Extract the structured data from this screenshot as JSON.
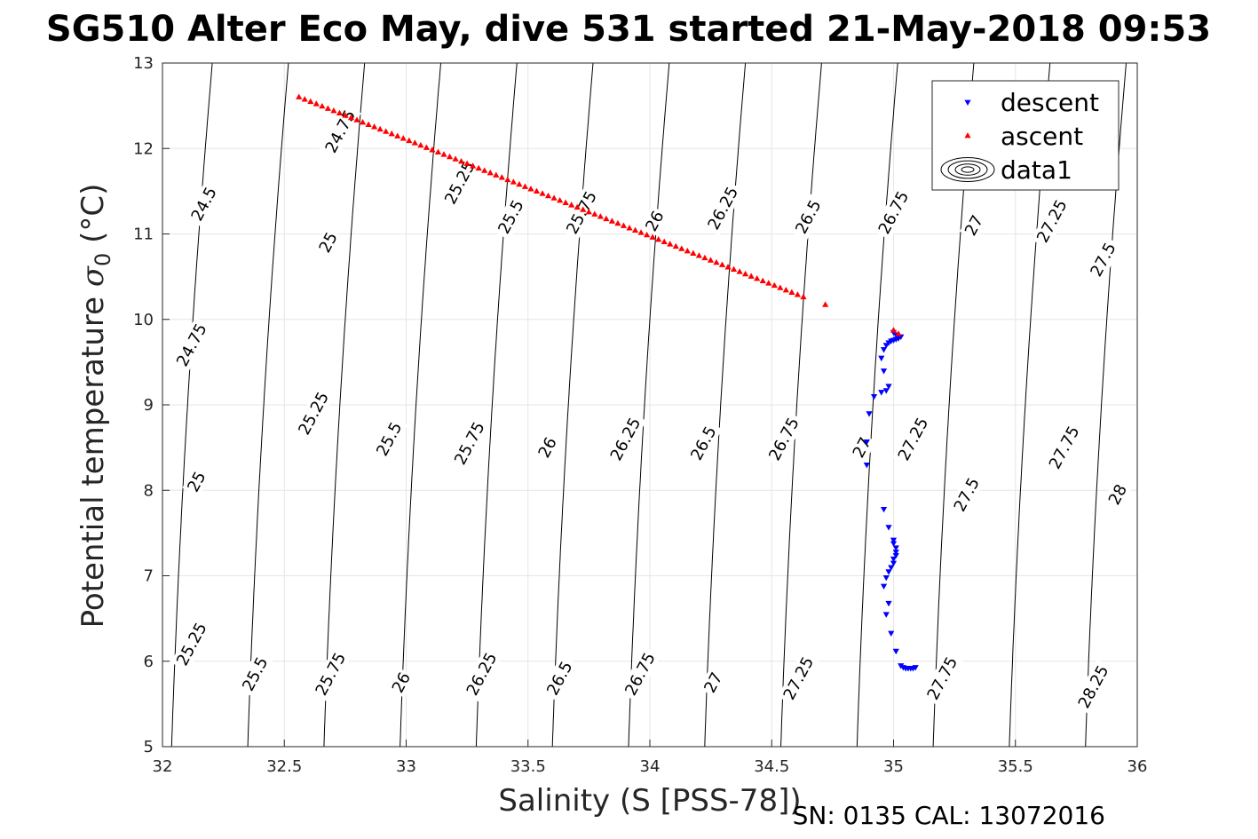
{
  "chart_data": {
    "type": "scatter",
    "title": "SG510 Alter Eco May, dive 531 started 21-May-2018 09:53",
    "xlabel": "Salinity (S [PSS-78])",
    "ylabel": "Potential temperature σ₀ (°C)",
    "ylabel_main": "Potential temperature ",
    "ylabel_sigma": "σ",
    "ylabel_sub": "0",
    "ylabel_unit": " (°C)",
    "footer": "SN: 0135  CAL: 13072016",
    "xlim": [
      32,
      36
    ],
    "ylim": [
      5,
      13
    ],
    "x_ticks": [
      "32",
      "32.5",
      "33",
      "33.5",
      "34",
      "34.5",
      "35",
      "35.5",
      "36"
    ],
    "y_ticks": [
      "5",
      "6",
      "7",
      "8",
      "9",
      "10",
      "11",
      "12",
      "13"
    ],
    "grid": true,
    "legend_position": "top-right",
    "legend": [
      {
        "name": "descent",
        "marker": "triangle-down",
        "color": "#0000ff"
      },
      {
        "name": "ascent",
        "marker": "triangle-up",
        "color": "#ff0000"
      },
      {
        "name": "data1",
        "marker": "contour",
        "color": "#000000"
      }
    ],
    "series": [
      {
        "name": "descent",
        "color": "#0000ff",
        "marker": "triangle-down",
        "points": [
          [
            34.89,
            8.3
          ],
          [
            34.89,
            8.57
          ],
          [
            34.9,
            8.9
          ],
          [
            34.92,
            9.1
          ],
          [
            34.95,
            9.15
          ],
          [
            34.97,
            9.17
          ],
          [
            34.98,
            9.22
          ],
          [
            34.96,
            9.4
          ],
          [
            34.95,
            9.55
          ],
          [
            34.96,
            9.65
          ],
          [
            34.97,
            9.7
          ],
          [
            34.98,
            9.73
          ],
          [
            34.99,
            9.75
          ],
          [
            35.0,
            9.76
          ],
          [
            35.01,
            9.77
          ],
          [
            35.02,
            9.78
          ],
          [
            35.03,
            9.8
          ],
          [
            35.01,
            9.82
          ],
          [
            35.0,
            9.85
          ],
          [
            34.96,
            7.78
          ],
          [
            34.98,
            7.57
          ],
          [
            35.0,
            7.42
          ],
          [
            35.0,
            7.38
          ],
          [
            35.01,
            7.33
          ],
          [
            35.01,
            7.28
          ],
          [
            35.01,
            7.24
          ],
          [
            35.0,
            7.2
          ],
          [
            35.0,
            7.15
          ],
          [
            34.99,
            7.1
          ],
          [
            34.98,
            7.05
          ],
          [
            34.97,
            6.98
          ],
          [
            34.96,
            6.88
          ],
          [
            34.98,
            6.68
          ],
          [
            34.97,
            6.55
          ],
          [
            34.99,
            6.33
          ],
          [
            35.01,
            6.12
          ],
          [
            35.03,
            5.95
          ],
          [
            35.04,
            5.93
          ],
          [
            35.05,
            5.92
          ],
          [
            35.06,
            5.92
          ],
          [
            35.07,
            5.92
          ],
          [
            35.08,
            5.92
          ],
          [
            35.09,
            5.93
          ]
        ]
      },
      {
        "name": "ascent",
        "color": "#ff0000",
        "marker": "triangle-up",
        "start": [
          32.56,
          12.6
        ],
        "end": [
          34.63,
          10.26
        ],
        "count": 88,
        "extra_points": [
          [
            34.72,
            10.17
          ],
          [
            35.0,
            9.87
          ],
          [
            35.02,
            9.83
          ]
        ]
      }
    ],
    "isopycnals": {
      "levels": [
        24.5,
        24.75,
        25,
        25.25,
        25.5,
        25.75,
        26,
        26.25,
        26.5,
        26.75,
        27,
        27.25,
        27.5,
        27.75,
        28,
        28.25
      ],
      "labels": [
        {
          "text": "24.75",
          "s": 32.73,
          "t": 12.2
        },
        {
          "text": "25.25",
          "s": 33.22,
          "t": 11.6
        },
        {
          "text": "25.5",
          "s": 33.43,
          "t": 11.2
        },
        {
          "text": "25.75",
          "s": 33.72,
          "t": 11.25
        },
        {
          "text": "26",
          "s": 34.02,
          "t": 11.15
        },
        {
          "text": "26.25",
          "s": 34.3,
          "t": 11.3
        },
        {
          "text": "26.5",
          "s": 34.65,
          "t": 11.2
        },
        {
          "text": "26.75",
          "s": 35.0,
          "t": 11.25
        },
        {
          "text": "27",
          "s": 35.33,
          "t": 11.1
        },
        {
          "text": "27.25",
          "s": 35.65,
          "t": 11.15
        },
        {
          "text": "27.5",
          "s": 35.86,
          "t": 10.7
        },
        {
          "text": "24.5",
          "s": 32.17,
          "t": 11.35
        },
        {
          "text": "25",
          "s": 32.68,
          "t": 10.9
        },
        {
          "text": "24.75",
          "s": 32.12,
          "t": 9.7
        },
        {
          "text": "25.25",
          "s": 32.62,
          "t": 8.9
        },
        {
          "text": "25.5",
          "s": 32.93,
          "t": 8.6
        },
        {
          "text": "25.75",
          "s": 33.26,
          "t": 8.55
        },
        {
          "text": "26",
          "s": 33.58,
          "t": 8.5
        },
        {
          "text": "26.25",
          "s": 33.9,
          "t": 8.6
        },
        {
          "text": "26.5",
          "s": 34.22,
          "t": 8.55
        },
        {
          "text": "26.75",
          "s": 34.55,
          "t": 8.6
        },
        {
          "text": "27",
          "s": 34.87,
          "t": 8.5
        },
        {
          "text": "27.25",
          "s": 35.08,
          "t": 8.6
        },
        {
          "text": "27.5",
          "s": 35.3,
          "t": 7.95
        },
        {
          "text": "27.75",
          "s": 35.7,
          "t": 8.5
        },
        {
          "text": "28",
          "s": 35.92,
          "t": 7.95
        },
        {
          "text": "25",
          "s": 32.14,
          "t": 8.1
        },
        {
          "text": "25.25",
          "s": 32.12,
          "t": 6.2
        },
        {
          "text": "25.5",
          "s": 32.38,
          "t": 5.85
        },
        {
          "text": "25.75",
          "s": 32.69,
          "t": 5.85
        },
        {
          "text": "26",
          "s": 32.98,
          "t": 5.75
        },
        {
          "text": "26.25",
          "s": 33.31,
          "t": 5.85
        },
        {
          "text": "26.5",
          "s": 33.63,
          "t": 5.8
        },
        {
          "text": "26.75",
          "s": 33.96,
          "t": 5.85
        },
        {
          "text": "27",
          "s": 34.26,
          "t": 5.75
        },
        {
          "text": "27.25",
          "s": 34.61,
          "t": 5.8
        },
        {
          "text": "27.75",
          "s": 35.2,
          "t": 5.8
        },
        {
          "text": "28.25",
          "s": 35.82,
          "t": 5.7
        }
      ]
    }
  }
}
